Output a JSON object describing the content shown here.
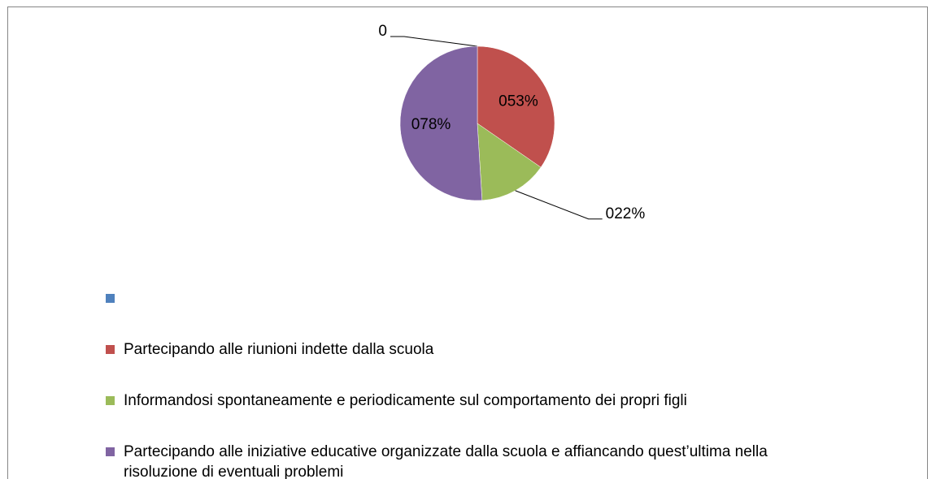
{
  "chart_data": {
    "type": "pie",
    "categories": [
      null,
      "Partecipando alle riunioni indette dalla scuola",
      "Informandosi spontaneamente e periodicamente sul comportamento dei propri figli",
      "Partecipando alle iniziative educative organizzate dalla scuola e affiancando quest’ultima nella risoluzione di eventuali problemi"
    ],
    "values": [
      0,
      53,
      22,
      78
    ],
    "value_labels": [
      "0",
      "053%",
      "022%",
      "078%"
    ],
    "colors": [
      "#4f81bd",
      "#c0504d",
      "#9bbb59",
      "#8064a2"
    ],
    "legend": "bottom"
  }
}
